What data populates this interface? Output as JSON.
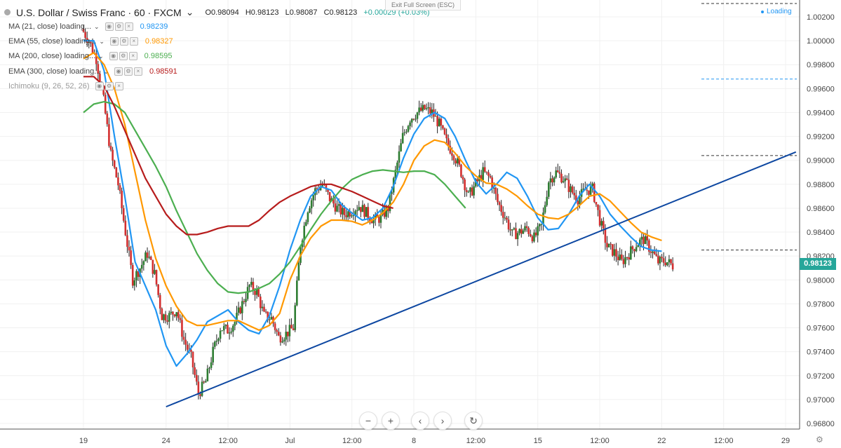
{
  "header": {
    "symbol_title": "U.S. Dollar / Swiss Franc · 60 · FXCM",
    "caret": "⌄",
    "ohlc": {
      "open": "O0.98094",
      "high": "H0.98123",
      "low": "L0.98087",
      "close": "C0.98123",
      "change": "+0.00029 (+0.03%)"
    }
  },
  "exit_fullscreen": "Exit Full Screen (ESC)",
  "loading_label": "Loading",
  "indicators": [
    {
      "name": "MA (21, close) loading...",
      "value": "0.98239",
      "color": "#2196f3"
    },
    {
      "name": "EMA (55, close) loading...",
      "value": "0.98327",
      "color": "#ff9800"
    },
    {
      "name": "MA (200, close) loading...",
      "value": "0.98595",
      "color": "#4caf50"
    },
    {
      "name": "EMA (300, close) loading...",
      "value": "0.98591",
      "color": "#b71c1c"
    },
    {
      "name": "Ichimoku (9, 26, 52, 26)",
      "value": "",
      "color": "#9e9e9e"
    }
  ],
  "current_price": "0.98123",
  "nav_icons": [
    "zoom-out-icon",
    "zoom-in-icon",
    "scroll-left-icon",
    "scroll-right-icon",
    "reset-icon"
  ],
  "chart_data": {
    "type": "line",
    "subtype": "candlestick-with-moving-averages",
    "grid": true,
    "ylim": [
      0.968,
      1.002
    ],
    "x_ticks": [
      {
        "label": "19",
        "idx": 0
      },
      {
        "label": "24",
        "idx": 16
      },
      {
        "label": "12:00",
        "idx": 28
      },
      {
        "label": "Jul",
        "idx": 40
      },
      {
        "label": "12:00",
        "idx": 52
      },
      {
        "label": "8",
        "idx": 64
      },
      {
        "label": "12:00",
        "idx": 76
      },
      {
        "label": "15",
        "idx": 88
      },
      {
        "label": "12:00",
        "idx": 100
      },
      {
        "label": "22",
        "idx": 112
      },
      {
        "label": "12:00",
        "idx": 124
      },
      {
        "label": "29",
        "idx": 136
      }
    ],
    "y_ticks": [
      1.002,
      1.0,
      0.998,
      0.996,
      0.994,
      0.992,
      0.99,
      0.988,
      0.986,
      0.984,
      0.982,
      0.98,
      0.978,
      0.976,
      0.974,
      0.972,
      0.97,
      0.968
    ],
    "x_max_idx": 138,
    "closes": [
      1.001,
      1.0,
      0.9985,
      0.995,
      0.9905,
      0.988,
      0.984,
      0.98,
      0.981,
      0.9822,
      0.9805,
      0.977,
      0.977,
      0.9775,
      0.975,
      0.9735,
      0.9705,
      0.9715,
      0.974,
      0.976,
      0.9758,
      0.9765,
      0.978,
      0.9795,
      0.979,
      0.977,
      0.9768,
      0.9752,
      0.9755,
      0.976,
      0.983,
      0.986,
      0.9875,
      0.988,
      0.9868,
      0.986,
      0.9855,
      0.9858,
      0.9862,
      0.9856,
      0.985,
      0.9852,
      0.986,
      0.989,
      0.992,
      0.9935,
      0.994,
      0.9943,
      0.994,
      0.993,
      0.9915,
      0.9905,
      0.989,
      0.987,
      0.988,
      0.989,
      0.9885,
      0.9865,
      0.9853,
      0.9838,
      0.984,
      0.9843,
      0.9835,
      0.9845,
      0.9883,
      0.989,
      0.9885,
      0.9875,
      0.9868,
      0.9875,
      0.9876,
      0.985,
      0.9828,
      0.9823,
      0.9815,
      0.9822,
      0.983,
      0.9834,
      0.9825,
      0.9815,
      0.9816,
      0.9812
    ],
    "series": [
      {
        "name": "MA (21, close)",
        "color": "#2196f3",
        "points": [
          [
            0,
            1.0
          ],
          [
            2,
            1.0
          ],
          [
            4,
            0.9975
          ],
          [
            6,
            0.992
          ],
          [
            8,
            0.987
          ],
          [
            10,
            0.9815
          ],
          [
            12,
            0.9795
          ],
          [
            14,
            0.9775
          ],
          [
            16,
            0.9745
          ],
          [
            18,
            0.9728
          ],
          [
            20,
            0.9738
          ],
          [
            22,
            0.975
          ],
          [
            24,
            0.9765
          ],
          [
            26,
            0.977
          ],
          [
            28,
            0.9775
          ],
          [
            30,
            0.9765
          ],
          [
            32,
            0.9758
          ],
          [
            34,
            0.9755
          ],
          [
            36,
            0.977
          ],
          [
            38,
            0.9795
          ],
          [
            40,
            0.9825
          ],
          [
            42,
            0.985
          ],
          [
            44,
            0.987
          ],
          [
            46,
            0.9878
          ],
          [
            48,
            0.9875
          ],
          [
            50,
            0.9863
          ],
          [
            52,
            0.9856
          ],
          [
            54,
            0.985
          ],
          [
            56,
            0.9852
          ],
          [
            58,
            0.986
          ],
          [
            60,
            0.9878
          ],
          [
            62,
            0.9902
          ],
          [
            64,
            0.9922
          ],
          [
            66,
            0.9935
          ],
          [
            68,
            0.994
          ],
          [
            70,
            0.9935
          ],
          [
            72,
            0.992
          ],
          [
            74,
            0.99
          ],
          [
            76,
            0.9882
          ],
          [
            78,
            0.9872
          ],
          [
            80,
            0.988
          ],
          [
            82,
            0.989
          ],
          [
            84,
            0.9885
          ],
          [
            86,
            0.987
          ],
          [
            88,
            0.9852
          ],
          [
            90,
            0.9842
          ],
          [
            92,
            0.9843
          ],
          [
            94,
            0.9855
          ],
          [
            96,
            0.987
          ],
          [
            98,
            0.988
          ],
          [
            100,
            0.987
          ],
          [
            102,
            0.9855
          ],
          [
            104,
            0.9845
          ],
          [
            106,
            0.9836
          ],
          [
            108,
            0.9828
          ],
          [
            110,
            0.9825
          ],
          [
            112,
            0.9824
          ]
        ]
      },
      {
        "name": "EMA (55, close)",
        "color": "#ff9800",
        "points": [
          [
            0,
            0.9985
          ],
          [
            2,
            0.999
          ],
          [
            4,
            0.998
          ],
          [
            6,
            0.996
          ],
          [
            8,
            0.993
          ],
          [
            10,
            0.989
          ],
          [
            12,
            0.985
          ],
          [
            14,
            0.9818
          ],
          [
            16,
            0.9795
          ],
          [
            18,
            0.9778
          ],
          [
            20,
            0.9766
          ],
          [
            22,
            0.9762
          ],
          [
            24,
            0.9762
          ],
          [
            26,
            0.9764
          ],
          [
            28,
            0.9766
          ],
          [
            30,
            0.9766
          ],
          [
            32,
            0.9762
          ],
          [
            34,
            0.9758
          ],
          [
            36,
            0.9762
          ],
          [
            38,
            0.9772
          ],
          [
            40,
            0.98
          ],
          [
            42,
            0.982
          ],
          [
            44,
            0.9835
          ],
          [
            46,
            0.9845
          ],
          [
            48,
            0.985
          ],
          [
            50,
            0.985
          ],
          [
            52,
            0.9849
          ],
          [
            54,
            0.9846
          ],
          [
            56,
            0.985
          ],
          [
            58,
            0.9856
          ],
          [
            60,
            0.9865
          ],
          [
            62,
            0.988
          ],
          [
            64,
            0.99
          ],
          [
            66,
            0.9912
          ],
          [
            68,
            0.9917
          ],
          [
            70,
            0.9915
          ],
          [
            72,
            0.9906
          ],
          [
            74,
            0.9895
          ],
          [
            76,
            0.9887
          ],
          [
            78,
            0.9881
          ],
          [
            80,
            0.988
          ],
          [
            82,
            0.9876
          ],
          [
            84,
            0.987
          ],
          [
            86,
            0.9862
          ],
          [
            88,
            0.9855
          ],
          [
            90,
            0.9852
          ],
          [
            92,
            0.9851
          ],
          [
            94,
            0.9855
          ],
          [
            96,
            0.9862
          ],
          [
            98,
            0.987
          ],
          [
            100,
            0.9872
          ],
          [
            102,
            0.9866
          ],
          [
            104,
            0.9857
          ],
          [
            106,
            0.9848
          ],
          [
            108,
            0.984
          ],
          [
            110,
            0.9836
          ],
          [
            112,
            0.9833
          ]
        ]
      },
      {
        "name": "MA (200, close)",
        "color": "#4caf50",
        "points": [
          [
            0,
            0.994
          ],
          [
            2,
            0.9947
          ],
          [
            4,
            0.9949
          ],
          [
            6,
            0.9947
          ],
          [
            8,
            0.994
          ],
          [
            10,
            0.9925
          ],
          [
            12,
            0.991
          ],
          [
            14,
            0.9895
          ],
          [
            16,
            0.9878
          ],
          [
            18,
            0.9858
          ],
          [
            20,
            0.984
          ],
          [
            22,
            0.9822
          ],
          [
            24,
            0.9808
          ],
          [
            26,
            0.9797
          ],
          [
            28,
            0.979
          ],
          [
            30,
            0.9789
          ],
          [
            32,
            0.979
          ],
          [
            34,
            0.9793
          ],
          [
            36,
            0.9797
          ],
          [
            38,
            0.9805
          ],
          [
            40,
            0.9815
          ],
          [
            42,
            0.9828
          ],
          [
            44,
            0.9842
          ],
          [
            46,
            0.9855
          ],
          [
            48,
            0.9866
          ],
          [
            50,
            0.9876
          ],
          [
            52,
            0.9884
          ],
          [
            54,
            0.9888
          ],
          [
            56,
            0.9891
          ],
          [
            58,
            0.9892
          ],
          [
            60,
            0.9891
          ],
          [
            62,
            0.989
          ],
          [
            64,
            0.9891
          ],
          [
            66,
            0.9891
          ],
          [
            68,
            0.9888
          ],
          [
            70,
            0.988
          ],
          [
            72,
            0.987
          ],
          [
            74,
            0.986
          ]
        ]
      },
      {
        "name": "EMA (300, close)",
        "color": "#b71c1c",
        "points": [
          [
            0,
            0.997
          ],
          [
            2,
            0.997
          ],
          [
            4,
            0.9962
          ],
          [
            6,
            0.9945
          ],
          [
            8,
            0.9925
          ],
          [
            10,
            0.9905
          ],
          [
            12,
            0.9885
          ],
          [
            14,
            0.987
          ],
          [
            16,
            0.9855
          ],
          [
            18,
            0.9845
          ],
          [
            20,
            0.9838
          ],
          [
            22,
            0.9838
          ],
          [
            24,
            0.984
          ],
          [
            26,
            0.9843
          ],
          [
            28,
            0.9845
          ],
          [
            30,
            0.9845
          ],
          [
            32,
            0.9845
          ],
          [
            34,
            0.985
          ],
          [
            36,
            0.9858
          ],
          [
            38,
            0.9865
          ],
          [
            40,
            0.987
          ],
          [
            42,
            0.9874
          ],
          [
            44,
            0.9878
          ],
          [
            46,
            0.988
          ],
          [
            48,
            0.988
          ],
          [
            50,
            0.9877
          ],
          [
            52,
            0.9874
          ],
          [
            54,
            0.987
          ],
          [
            56,
            0.9866
          ],
          [
            58,
            0.9862
          ],
          [
            60,
            0.986
          ]
        ]
      }
    ],
    "trendline": {
      "color": "#0d47a1",
      "from": [
        16,
        0.9694
      ],
      "to": [
        138,
        0.9907
      ]
    },
    "dashed_levels": [
      {
        "price": 1.003,
        "color": "#333333"
      },
      {
        "price": 0.9968,
        "color": "#2196f3"
      },
      {
        "price": 0.9904,
        "color": "#333333"
      },
      {
        "price": 0.9825,
        "color": "#333333"
      }
    ]
  }
}
